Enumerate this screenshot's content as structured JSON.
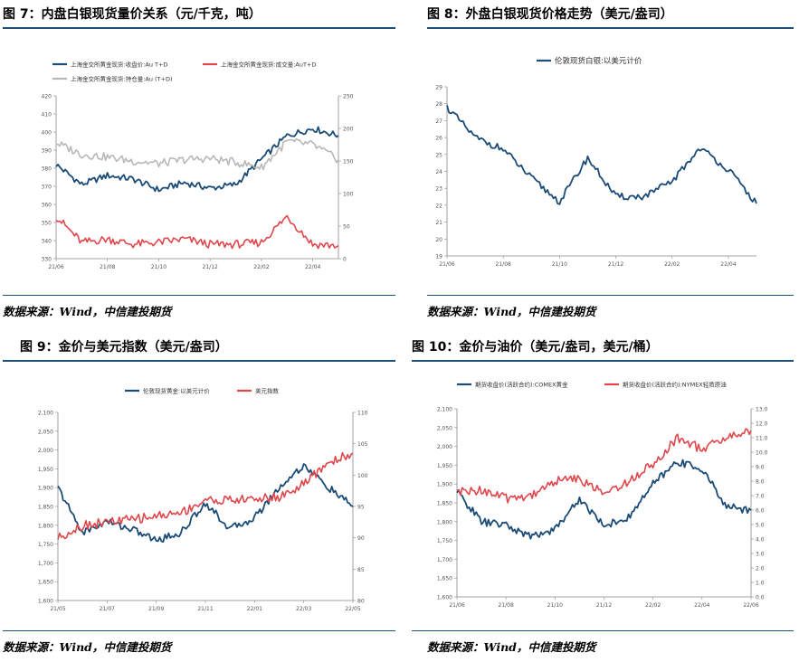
{
  "colors": {
    "navy": "#1b4b77",
    "red": "#e0474c",
    "gray": "#b8b8b8",
    "rule": "#1f4e79"
  },
  "panels": [
    {
      "title": "图 7：内盘白银现货量价关系（元/千克，吨）",
      "source": "数据来源：Wind，中信建投期货"
    },
    {
      "title": "图 8：外盘白银现货价格走势（美元/盎司）",
      "source": "数据来源：Wind，中信建投期货"
    },
    {
      "title": "图 9：金价与美元指数（美元/盎司）",
      "source": "数据来源：Wind，中信建投期货"
    },
    {
      "title": "图 10：金价与油价（美元/盎司，美元/桶）",
      "source": "数据来源：Wind，中信建投期货"
    }
  ],
  "chart_data": [
    {
      "type": "line",
      "title": "",
      "x": [
        "21/06",
        "21/07",
        "21/08",
        "21/09",
        "21/10",
        "21/11",
        "21/12",
        "22/01",
        "22/02",
        "22/03",
        "22/04",
        "22/05"
      ],
      "xticks": [
        "21/06",
        "21/08",
        "21/10",
        "21/12",
        "22/02",
        "22/04"
      ],
      "ylim_left": [
        330,
        420
      ],
      "yticks_left": [
        330,
        340,
        350,
        360,
        370,
        380,
        390,
        400,
        410,
        420
      ],
      "ylim_right": [
        0,
        250
      ],
      "yticks_right": [
        0,
        50,
        100,
        150,
        200,
        250
      ],
      "legend_placement": "top-left",
      "series": [
        {
          "name": "上海金交所黄金现货:收盘价:Au T+D",
          "axis": "left",
          "color": "navy",
          "values": [
            382,
            371,
            376,
            374,
            368,
            372,
            369,
            371,
            385,
            398,
            402,
            398
          ]
        },
        {
          "name": "上海金交所黄金现货:成交量:AuT+D",
          "axis": "right",
          "color": "red",
          "values": [
            65,
            25,
            30,
            22,
            25,
            30,
            22,
            22,
            25,
            65,
            22,
            20
          ]
        },
        {
          "name": "上海金交所黄金现货:持仓量:Au (T+D)",
          "axis": "right",
          "color": "gray",
          "values": [
            178,
            160,
            156,
            150,
            146,
            152,
            154,
            148,
            140,
            180,
            175,
            152
          ]
        }
      ]
    },
    {
      "type": "line",
      "title": "",
      "x": [
        "21/06",
        "21/07",
        "21/08",
        "21/09",
        "21/10",
        "21/11",
        "21/12",
        "22/01",
        "22/02",
        "22/03",
        "22/04",
        "22/05"
      ],
      "xticks": [
        "21/06",
        "21/08",
        "21/10",
        "21/12",
        "22/02",
        "22/04"
      ],
      "ylim": [
        19,
        29
      ],
      "yticks": [
        19,
        20,
        21,
        22,
        23,
        24,
        25,
        26,
        27,
        28,
        29
      ],
      "legend_placement": "top",
      "series": [
        {
          "name": "伦敦现货白银:以美元计价",
          "color": "navy",
          "values": [
            27.8,
            26.0,
            25.3,
            23.6,
            22.2,
            24.8,
            22.5,
            22.5,
            23.4,
            25.4,
            24.1,
            22.1
          ]
        }
      ]
    },
    {
      "type": "line",
      "title": "",
      "x": [
        "21/05",
        "21/06",
        "21/07",
        "21/08",
        "21/09",
        "21/10",
        "21/11",
        "21/12",
        "22/01",
        "22/02",
        "22/03",
        "22/04",
        "22/05"
      ],
      "xticks": [
        "21/05",
        "21/07",
        "21/09",
        "21/11",
        "22/01",
        "22/03",
        "22/05"
      ],
      "ylim_left": [
        1600,
        2100
      ],
      "yticks_left": [
        1600,
        1650,
        1700,
        1750,
        1800,
        1850,
        1900,
        1950,
        2000,
        2050,
        2100
      ],
      "ylim_right": [
        80,
        110
      ],
      "yticks_right": [
        80,
        85,
        90,
        95,
        100,
        105,
        110
      ],
      "legend_placement": "top",
      "series": [
        {
          "name": "伦敦现货黄金:以美元计价",
          "axis": "left",
          "color": "navy",
          "values": [
            1900,
            1780,
            1810,
            1790,
            1760,
            1780,
            1860,
            1790,
            1820,
            1900,
            1960,
            1900,
            1850
          ]
        },
        {
          "name": "美元指数",
          "axis": "right",
          "color": "red",
          "values": [
            90.0,
            92.0,
            92.5,
            92.9,
            93.5,
            94.0,
            96.0,
            96.0,
            96.2,
            96.5,
            98.5,
            102.0,
            103.5
          ]
        }
      ]
    },
    {
      "type": "line",
      "title": "",
      "x": [
        "21/06",
        "21/07",
        "21/08",
        "21/09",
        "21/10",
        "21/11",
        "21/12",
        "22/01",
        "22/02",
        "22/03",
        "22/04",
        "22/05",
        "22/06"
      ],
      "xticks": [
        "21/06",
        "21/08",
        "21/10",
        "21/12",
        "22/02",
        "22/04",
        "22/06"
      ],
      "ylim_left": [
        1600,
        2100
      ],
      "yticks_left": [
        1600,
        1650,
        1700,
        1750,
        1800,
        1850,
        1900,
        1950,
        2000,
        2050,
        2100
      ],
      "ylim_right": [
        0.0,
        13.0
      ],
      "yticks_right": [
        0.0,
        1.0,
        2.0,
        3.0,
        4.0,
        5.0,
        6.0,
        7.0,
        8.0,
        9.0,
        10.0,
        11.0,
        12.0,
        13.0
      ],
      "legend_placement": "top",
      "series": [
        {
          "name": "期货收盘价(活跃合约):COMEX黄金",
          "axis": "left",
          "color": "navy",
          "values": [
            1880,
            1800,
            1790,
            1760,
            1780,
            1860,
            1790,
            1810,
            1900,
            1960,
            1940,
            1840,
            1830
          ]
        },
        {
          "name": "期货收盘价(活跃合约):NYMEX轻质原油",
          "axis": "right",
          "color": "red",
          "values": [
            7.2,
            7.4,
            6.8,
            7.0,
            8.0,
            8.2,
            7.1,
            8.0,
            9.2,
            11.0,
            10.2,
            11.0,
            11.5
          ]
        }
      ]
    }
  ]
}
